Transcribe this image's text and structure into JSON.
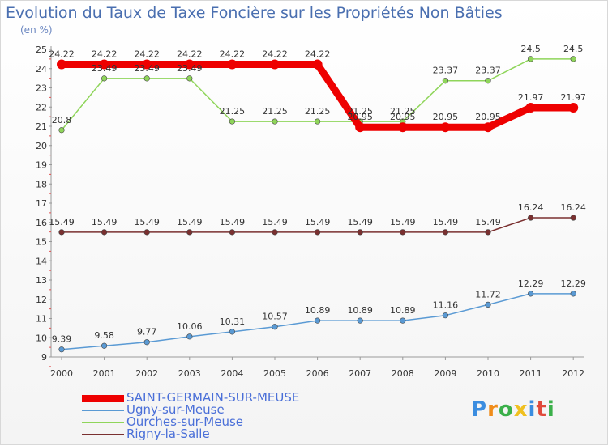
{
  "title": "Evolution du Taux de Taxe Foncière sur les Propriétés Non Bâties",
  "subtitle": "(en %)",
  "brand": {
    "letters": [
      "P",
      "r",
      "o",
      "x",
      "i",
      "t",
      "i"
    ],
    "colors": [
      "#3b8de0",
      "#f08c1a",
      "#3bb04a",
      "#f0c020",
      "#3b8de0",
      "#e04a3b",
      "#3bb04a"
    ]
  },
  "chart_data": {
    "type": "line",
    "title": "Evolution du Taux de Taxe Foncière sur les Propriétés Non Bâties",
    "ylabel": "(en %)",
    "xlabel": "",
    "ylim": [
      9,
      25
    ],
    "yticks": [
      "9",
      "10",
      "11",
      "12",
      "13",
      "14",
      "15",
      "16",
      "17",
      "18",
      "19",
      "20",
      "21",
      "22",
      "23",
      "24",
      "25"
    ],
    "categories": [
      "2000",
      "2001",
      "2002",
      "2003",
      "2004",
      "2005",
      "2006",
      "2007",
      "2008",
      "2009",
      "2010",
      "2011",
      "2012"
    ],
    "series": [
      {
        "name": "SAINT-GERMAIN-SUR-MEUSE",
        "color": "#ee0000",
        "values": [
          24.22,
          24.22,
          24.22,
          24.22,
          24.22,
          24.22,
          24.22,
          20.95,
          20.95,
          20.95,
          20.95,
          21.97,
          21.97
        ],
        "labels": [
          "24.22",
          "24.22",
          "24.22",
          "24.22",
          "24.22",
          "24.22",
          "24.22",
          "20.95",
          "20.95",
          "20.95",
          "20.95",
          "21.97",
          "21.97"
        ]
      },
      {
        "name": "Ugny-sur-Meuse",
        "color": "#5a9ad4",
        "values": [
          9.39,
          9.58,
          9.77,
          10.06,
          10.31,
          10.57,
          10.89,
          10.89,
          10.89,
          11.16,
          11.72,
          12.29,
          12.29
        ],
        "labels": [
          "9.39",
          "9.58",
          "9.77",
          "10.06",
          "10.31",
          "10.57",
          "10.89",
          "10.89",
          "10.89",
          "11.16",
          "11.72",
          "12.29",
          "12.29"
        ]
      },
      {
        "name": "Ourches-sur-Meuse",
        "color": "#8fd55a",
        "values": [
          20.8,
          23.49,
          23.49,
          23.49,
          21.25,
          21.25,
          21.25,
          21.25,
          21.25,
          23.37,
          23.37,
          24.5,
          24.5
        ],
        "labels": [
          "20.8",
          "23.49",
          "23.49",
          "23.49",
          "21.25",
          "21.25",
          "21.25",
          "21.25",
          "21.25",
          "23.37",
          "23.37",
          "24.5",
          "24.5"
        ]
      },
      {
        "name": "Rigny-la-Salle",
        "color": "#7a3030",
        "values": [
          15.49,
          15.49,
          15.49,
          15.49,
          15.49,
          15.49,
          15.49,
          15.49,
          15.49,
          15.49,
          15.49,
          16.24,
          16.24
        ],
        "labels": [
          "15.49",
          "15.49",
          "15.49",
          "15.49",
          "15.49",
          "15.49",
          "15.49",
          "15.49",
          "15.49",
          "15.49",
          "15.49",
          "16.24",
          "16.24"
        ]
      }
    ]
  }
}
